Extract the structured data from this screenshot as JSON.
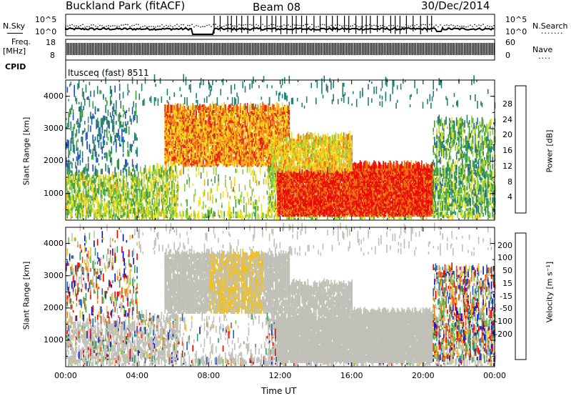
{
  "header": {
    "title": "Buckland Park (fitACF)",
    "beam": "Beam 08",
    "date": "30/Dec/2014"
  },
  "strip": {
    "nsky_label": "N.Sky",
    "nsky_ticks": [
      "10^5",
      "10^0"
    ],
    "nsearch_label": "N.Search",
    "nsearch_ticks": [
      "10^5",
      "10^0"
    ],
    "freq_label": "Freq.",
    "freq_unit": "[MHz]",
    "freq_ticks": [
      "18",
      "8"
    ],
    "nave_label": "Nave",
    "nave_ticks": [
      "60",
      "0"
    ],
    "cpid_label": "CPID",
    "cpid_value": "Itusceq (fast) 8511"
  },
  "chart_data": [
    {
      "type": "heatmap",
      "name": "power-panel",
      "ylabel": "Slant Range [km]",
      "y_ticks": [
        "4000",
        "3000",
        "2000",
        "1000"
      ],
      "ylim": [
        180,
        4500
      ],
      "x_ticks": [
        "00:00",
        "04:00",
        "08:00",
        "12:00",
        "16:00",
        "20:00",
        "00:00"
      ],
      "xlim_hours": [
        0,
        24
      ],
      "colorbar": {
        "label": "Power [dB]",
        "ticks": [
          "28",
          "24",
          "20",
          "16",
          "12",
          "8",
          "4"
        ],
        "colors": [
          "#1010e0",
          "#2050c0",
          "#208070",
          "#40a040",
          "#90d040",
          "#f0e020",
          "#f8b020",
          "#f07010",
          "#e02010",
          "#f00000"
        ]
      }
    },
    {
      "type": "heatmap",
      "name": "velocity-panel",
      "ylabel": "Slant Range [km]",
      "y_ticks": [
        "4000",
        "3000",
        "2000",
        "1000"
      ],
      "ylim": [
        180,
        4500
      ],
      "x_ticks": [
        "00:00",
        "04:00",
        "08:00",
        "12:00",
        "16:00",
        "20:00",
        "00:00"
      ],
      "xlim_hours": [
        0,
        24
      ],
      "xlabel": "Time UT",
      "colorbar": {
        "label": "Velocity [m s⁻¹]",
        "ticks": [
          "200",
          "100",
          "50",
          "15",
          "-15",
          "-50",
          "-100",
          "-200"
        ],
        "colors": [
          "#1010c0",
          "#2060c0",
          "#30a060",
          "#60c040",
          "#c0c0b8",
          "#c0c0b8",
          "#f0c020",
          "#f08010",
          "#f04010",
          "#f00000"
        ]
      }
    }
  ]
}
